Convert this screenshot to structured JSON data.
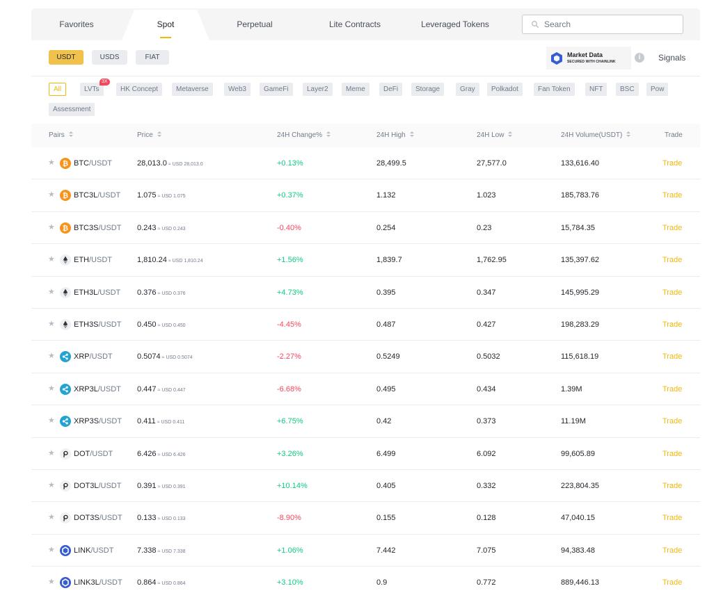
{
  "tabs": [
    {
      "label": "Favorites",
      "active": false
    },
    {
      "label": "Spot",
      "active": true
    },
    {
      "label": "Perpetual",
      "active": false
    },
    {
      "label": "Lite Contracts",
      "active": false
    },
    {
      "label": "Leveraged Tokens",
      "active": false
    }
  ],
  "search": {
    "placeholder": "Search"
  },
  "quote_assets": [
    {
      "label": "USDT",
      "active": true
    },
    {
      "label": "USDS",
      "active": false
    },
    {
      "label": "FIAT",
      "active": false
    }
  ],
  "market_data": {
    "title": "Market Data",
    "subtitle": "SECURED WITH CHAINLINK",
    "info_glyph": "i"
  },
  "signals_label": "Signals",
  "categories": [
    {
      "label": "All",
      "active": true
    },
    {
      "label": "LVTs",
      "badge": "3X"
    },
    {
      "label": "HK Concept"
    },
    {
      "label": "Metaverse"
    },
    {
      "label": "Web3"
    },
    {
      "label": "GameFi"
    },
    {
      "label": "Layer2"
    },
    {
      "label": "Meme"
    },
    {
      "label": "DeFi"
    },
    {
      "label": "Storage"
    },
    {
      "label": "Gray"
    },
    {
      "label": "Polkadot"
    },
    {
      "label": "Fan Token"
    },
    {
      "label": "NFT"
    },
    {
      "label": "BSC"
    },
    {
      "label": "Pow"
    },
    {
      "label": "Assessment"
    }
  ],
  "table": {
    "headers": {
      "pairs": "Pairs",
      "price": "Price",
      "change": "24H Change%",
      "high": "24H High",
      "low": "24H Low",
      "volume": "24H Volume(USDT)",
      "trade": "Trade"
    },
    "rows": [
      {
        "base": "BTC",
        "quote": "/USDT",
        "icon": "btc",
        "price": "28,013.0",
        "usd": "≈ USD 28,013.0",
        "change": "+0.13%",
        "dir": "up",
        "high": "28,499.5",
        "low": "27,577.0",
        "volume": "133,616.40",
        "trade": "Trade"
      },
      {
        "base": "BTC3L",
        "quote": "/USDT",
        "icon": "btc",
        "price": "1.075",
        "usd": "≈ USD 1.075",
        "change": "+0.37%",
        "dir": "up",
        "high": "1.132",
        "low": "1.023",
        "volume": "185,783.76",
        "trade": "Trade"
      },
      {
        "base": "BTC3S",
        "quote": "/USDT",
        "icon": "btc",
        "price": "0.243",
        "usd": "≈ USD 0.243",
        "change": "-0.40%",
        "dir": "down",
        "high": "0.254",
        "low": "0.23",
        "volume": "15,784.35",
        "trade": "Trade"
      },
      {
        "base": "ETH",
        "quote": "/USDT",
        "icon": "eth",
        "price": "1,810.24",
        "usd": "≈ USD 1,810.24",
        "change": "+1.56%",
        "dir": "up",
        "high": "1,839.7",
        "low": "1,762.95",
        "volume": "135,397.62",
        "trade": "Trade"
      },
      {
        "base": "ETH3L",
        "quote": "/USDT",
        "icon": "eth",
        "price": "0.376",
        "usd": "≈ USD 0.376",
        "change": "+4.73%",
        "dir": "up",
        "high": "0.395",
        "low": "0.347",
        "volume": "145,995.29",
        "trade": "Trade"
      },
      {
        "base": "ETH3S",
        "quote": "/USDT",
        "icon": "eth",
        "price": "0.450",
        "usd": "≈ USD 0.450",
        "change": "-4.45%",
        "dir": "down",
        "high": "0.487",
        "low": "0.427",
        "volume": "198,283.29",
        "trade": "Trade"
      },
      {
        "base": "XRP",
        "quote": "/USDT",
        "icon": "xrp",
        "price": "0.5074",
        "usd": "≈ USD 0.5074",
        "change": "-2.27%",
        "dir": "down",
        "high": "0.5249",
        "low": "0.5032",
        "volume": "115,618.19",
        "trade": "Trade"
      },
      {
        "base": "XRP3L",
        "quote": "/USDT",
        "icon": "xrp",
        "price": "0.447",
        "usd": "≈ USD 0.447",
        "change": "-6.68%",
        "dir": "down",
        "high": "0.495",
        "low": "0.434",
        "volume": "1.39M",
        "trade": "Trade"
      },
      {
        "base": "XRP3S",
        "quote": "/USDT",
        "icon": "xrp",
        "price": "0.411",
        "usd": "≈ USD 0.411",
        "change": "+6.75%",
        "dir": "up",
        "high": "0.42",
        "low": "0.373",
        "volume": "11.19M",
        "trade": "Trade"
      },
      {
        "base": "DOT",
        "quote": "/USDT",
        "icon": "dot",
        "price": "6.426",
        "usd": "≈ USD 6.426",
        "change": "+3.26%",
        "dir": "up",
        "high": "6.499",
        "low": "6.092",
        "volume": "99,605.89",
        "trade": "Trade"
      },
      {
        "base": "DOT3L",
        "quote": "/USDT",
        "icon": "dot",
        "price": "0.391",
        "usd": "≈ USD 0.391",
        "change": "+10.14%",
        "dir": "up",
        "high": "0.405",
        "low": "0.332",
        "volume": "223,804.35",
        "trade": "Trade"
      },
      {
        "base": "DOT3S",
        "quote": "/USDT",
        "icon": "dot",
        "price": "0.133",
        "usd": "≈ USD 0.133",
        "change": "-8.90%",
        "dir": "down",
        "high": "0.155",
        "low": "0.128",
        "volume": "47,040.15",
        "trade": "Trade"
      },
      {
        "base": "LINK",
        "quote": "/USDT",
        "icon": "link",
        "price": "7.338",
        "usd": "≈ USD 7.338",
        "change": "+1.06%",
        "dir": "up",
        "high": "7.442",
        "low": "7.075",
        "volume": "94,383.48",
        "trade": "Trade"
      },
      {
        "base": "LINK3L",
        "quote": "/USDT",
        "icon": "link",
        "price": "0.864",
        "usd": "≈ USD 0.864",
        "change": "+3.10%",
        "dir": "up",
        "high": "0.9",
        "low": "0.772",
        "volume": "889,446.13",
        "trade": "Trade"
      }
    ]
  },
  "colors": {
    "accent": "#f0b90b",
    "up": "#0ecb81",
    "down": "#f6465d"
  }
}
